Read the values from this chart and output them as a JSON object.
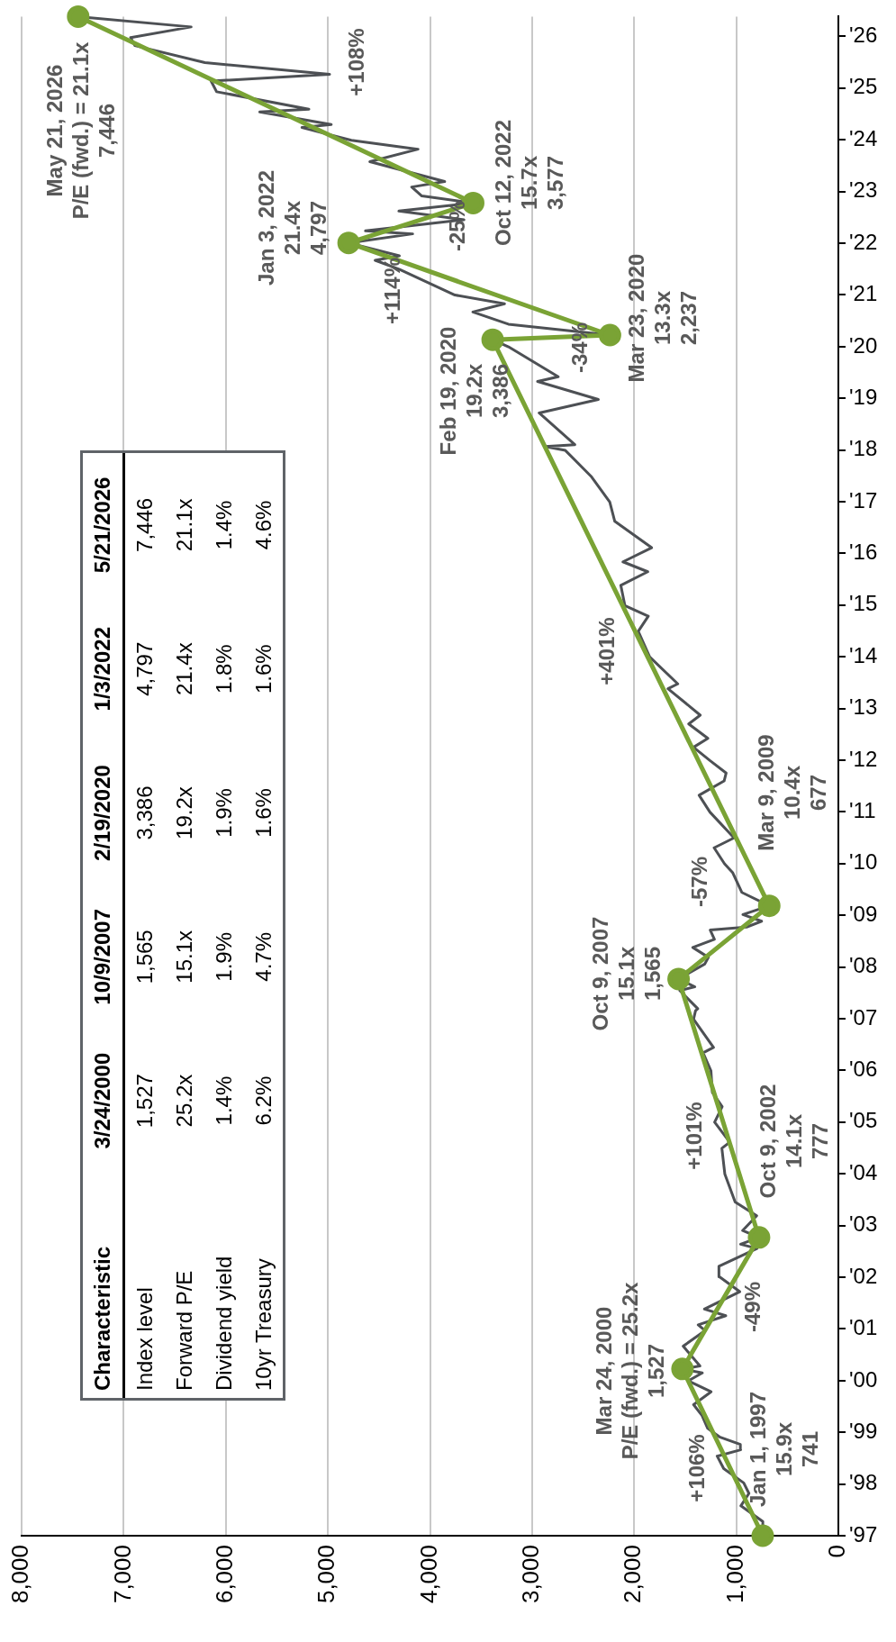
{
  "chart_data": [
    {
      "type": "line",
      "orientation": "horizontal",
      "ylim": [
        "1997-01-01",
        "2026-05-21"
      ],
      "xlim": [
        8000,
        0
      ],
      "yticks": [
        {
          "value": "1997",
          "label": "'97"
        },
        {
          "value": "1998",
          "label": "'98"
        },
        {
          "value": "1999",
          "label": "'99"
        },
        {
          "value": "2000",
          "label": "'00"
        },
        {
          "value": "2001",
          "label": "'01"
        },
        {
          "value": "2002",
          "label": "'02"
        },
        {
          "value": "2003",
          "label": "'03"
        },
        {
          "value": "2004",
          "label": "'04"
        },
        {
          "value": "2005",
          "label": "'05"
        },
        {
          "value": "2006",
          "label": "'06"
        },
        {
          "value": "2007",
          "label": "'07"
        },
        {
          "value": "2008",
          "label": "'08"
        },
        {
          "value": "2009",
          "label": "'09"
        },
        {
          "value": "2010",
          "label": "'10"
        },
        {
          "value": "2011",
          "label": "'11"
        },
        {
          "value": "2012",
          "label": "'12"
        },
        {
          "value": "2013",
          "label": "'13"
        },
        {
          "value": "2014",
          "label": "'14"
        },
        {
          "value": "2015",
          "label": "'15"
        },
        {
          "value": "2016",
          "label": "'16"
        },
        {
          "value": "2017",
          "label": "'17"
        },
        {
          "value": "2018",
          "label": "'18"
        },
        {
          "value": "2019",
          "label": "'19"
        },
        {
          "value": "2020",
          "label": "'20"
        },
        {
          "value": "2021",
          "label": "'21"
        },
        {
          "value": "2022",
          "label": "'22"
        },
        {
          "value": "2023",
          "label": "'23"
        },
        {
          "value": "2024",
          "label": "'24"
        },
        {
          "value": "2025",
          "label": "'25"
        },
        {
          "value": "2026",
          "label": "'26"
        }
      ],
      "xticks": [
        0,
        {
          "value": 1000,
          "label": "1,000"
        },
        {
          "value": 2000,
          "label": "2,000"
        },
        {
          "value": 3000,
          "label": "3,000"
        },
        {
          "value": 4000,
          "label": "4,000"
        },
        {
          "value": 5000,
          "label": "5,000"
        },
        {
          "value": 6000,
          "label": "6,000"
        },
        {
          "value": 7000,
          "label": "7,000"
        },
        {
          "value": 8000,
          "label": "8,000"
        }
      ],
      "grid": "x",
      "series": [
        {
          "color": "#4d5054",
          "x": [
            "1997-01-01",
            "1997-04-11",
            "1997-07-31",
            "1997-10-27",
            "1998-01-09",
            "1998-04-20",
            "1998-07-17",
            "1998-08-31",
            "1998-10-08",
            "1998-11-30",
            "1999-01-29",
            "1999-04-30",
            "1999-07-16",
            "1999-10-15",
            "1999-12-31",
            "2000-02-25",
            "2000-03-24",
            "2000-04-14",
            "2000-09-01",
            "2000-12-20",
            "2001-01-30",
            "2001-04-04",
            "2001-05-21",
            "2001-09-21",
            "2002-01-04",
            "2002-03-19",
            "2002-07-23",
            "2002-08-22",
            "2002-10-09",
            "2002-11-27",
            "2003-03-11",
            "2003-06-17",
            "2003-12-31",
            "2004-06-30",
            "2004-08-12",
            "2004-12-31",
            "2005-04-20",
            "2005-07-29",
            "2005-12-30",
            "2006-05-05",
            "2006-06-13",
            "2006-12-29",
            "2007-02-27",
            "2007-03-13",
            "2007-07-19",
            "2007-08-15",
            "2007-10-09",
            "2008-01-22",
            "2008-03-10",
            "2008-05-19",
            "2008-07-15",
            "2008-09-19",
            "2008-10-10",
            "2008-11-20",
            "2009-01-06",
            "2009-03-09",
            "2009-06-12",
            "2009-10-30",
            "2009-12-31",
            "2010-04-23",
            "2010-07-02",
            "2010-12-31",
            "2011-04-29",
            "2011-08-08",
            "2011-10-03",
            "2011-12-30",
            "2012-04-02",
            "2012-06-04",
            "2012-09-14",
            "2012-11-15",
            "2013-05-21",
            "2013-06-24",
            "2013-12-31",
            "2014-06-30",
            "2014-10-15",
            "2014-12-29",
            "2015-05-21",
            "2015-08-25",
            "2015-11-03",
            "2016-02-11",
            "2016-08-15",
            "2016-12-30",
            "2017-06-30",
            "2017-12-29",
            "2018-01-26",
            "2018-02-08",
            "2018-09-20",
            "2018-12-24",
            "2019-04-30",
            "2019-06-03",
            "2019-12-31",
            "2020-02-19",
            "2020-03-23",
            "2020-06-08",
            "2020-09-02",
            "2020-10-30",
            "2020-12-31",
            "2021-06-30",
            "2021-09-02",
            "2021-10-04",
            "2022-01-03",
            "2022-03-08",
            "2022-03-29",
            "2022-06-16",
            "2022-08-16",
            "2022-10-12",
            "2022-12-01",
            "2023-02-02",
            "2023-03-13",
            "2023-07-31",
            "2023-10-27",
            "2023-12-29",
            "2024-03-28",
            "2024-04-19",
            "2024-07-16",
            "2024-08-05",
            "2024-12-06",
            "2025-02-19",
            "2025-04-08",
            "2025-06-30",
            "2025-10-28",
            "2025-12-24",
            "2026-03-09",
            "2026-05-21"
          ],
          "values": [
            741,
            740,
            955,
            876,
            927,
            1123,
            1187,
            957,
            960,
            1164,
            1280,
            1335,
            1418,
            1247,
            1469,
            1333,
            1527,
            1356,
            1520,
            1305,
            1373,
            1103,
            1312,
            966,
            1165,
            1170,
            797,
            958,
            777,
            938,
            800,
            1011,
            1112,
            1141,
            1064,
            1212,
            1138,
            1234,
            1248,
            1325,
            1223,
            1418,
            1399,
            1377,
            1553,
            1406,
            1565,
            1310,
            1273,
            1426,
            1214,
            1255,
            899,
            752,
            935,
            677,
            946,
            1036,
            1115,
            1217,
            1022,
            1258,
            1364,
            1119,
            1099,
            1258,
            1419,
            1278,
            1466,
            1353,
            1669,
            1573,
            1848,
            1960,
            1862,
            2091,
            2131,
            1867,
            2110,
            1829,
            2190,
            2239,
            2423,
            2674,
            2873,
            2581,
            2931,
            2351,
            2946,
            2744,
            3231,
            3386,
            2237,
            3232,
            3580,
            3270,
            3756,
            4298,
            4537,
            4300,
            4797,
            4170,
            4632,
            3667,
            4305,
            3577,
            4080,
            4179,
            3856,
            4589,
            4117,
            4770,
            5254,
            4967,
            5667,
            5186,
            6090,
            6144,
            4983,
            6205,
            6891,
            6932,
            6340,
            7446
          ]
        },
        {
          "color": "#7aa335",
          "marker": "circle",
          "x": [
            "1997-01-01",
            "2000-03-24",
            "2002-10-09",
            "2007-10-09",
            "2009-03-09",
            "2020-02-19",
            "2020-03-23",
            "2022-01-03",
            "2022-10-12",
            "2026-05-21"
          ],
          "values": [
            741,
            1527,
            777,
            1565,
            677,
            3386,
            2237,
            4797,
            3577,
            7446
          ]
        }
      ],
      "annotations": [
        "Jan 1, 1997\n15.9x\n741",
        "+106%",
        "Mar 24, 2000\nP/E (fwd.) = 25.2x\n1,527",
        "-49%",
        "Oct 9, 2002\n14.1x\n777",
        "+101%",
        "Oct 9, 2007\n15.1x\n1,565",
        "-57%",
        "Mar 9, 2009\n10.4x\n677",
        "+401%",
        "Feb 19, 2020\n19.2x\n3,386",
        "-34%",
        "Mar 23, 2020\n13.3x\n2,237",
        "+114%",
        "Jan 3, 2022\n21.4x\n4,797",
        "-25%",
        "Oct 12, 2022\n15.7x\n3,577",
        "+108%",
        "May 21, 2026\nP/E (fwd.) = 21.1x\n7,446"
      ]
    },
    {
      "type": "other",
      "title": "Characteristic",
      "categories": [
        "3/24/2000",
        "10/9/2007",
        "2/19/2020",
        "1/3/2022",
        "5/21/2026"
      ],
      "series": [
        {
          "name": "Index level",
          "values": [
            1527,
            1565,
            3386,
            4797,
            7446
          ],
          "value_labels": [
            "1,527",
            "1,565",
            "3,386",
            "4,797",
            "7,446"
          ]
        },
        {
          "name": "Forward P/E",
          "values": [
            25.2,
            15.1,
            19.2,
            21.4,
            21.1
          ],
          "value_labels": [
            "25.2x",
            "15.1x",
            "19.2x",
            "21.4x",
            "21.1x"
          ]
        },
        {
          "name": "Dividend yield",
          "values": [
            1.4,
            1.9,
            1.9,
            1.8,
            1.4
          ],
          "value_labels": [
            "1.4%",
            "1.9%",
            "1.9%",
            "1.8%",
            "1.4%"
          ]
        },
        {
          "name": "10yr Treasury",
          "values": [
            6.2,
            4.7,
            1.6,
            1.6,
            4.6
          ],
          "value_labels": [
            "6.2%",
            "4.7%",
            "1.6%",
            "1.6%",
            "4.6%"
          ]
        }
      ]
    }
  ]
}
